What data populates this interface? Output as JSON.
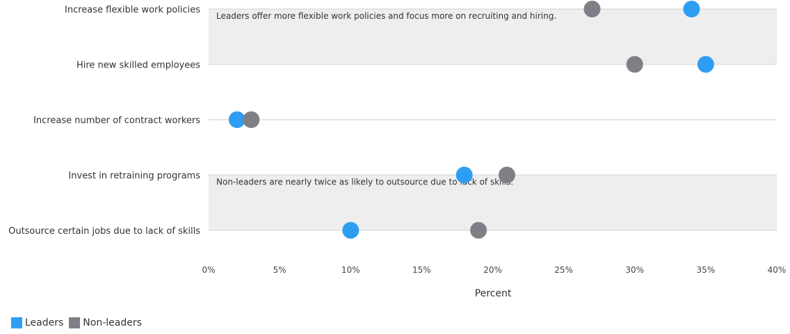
{
  "chart_data": {
    "type": "scatter",
    "categories": [
      "Increase flexible work policies",
      "Hire new skilled employees",
      "Increase number of contract workers",
      "Invest in retraining programs",
      "Outsource certain jobs due to lack of skills"
    ],
    "series": [
      {
        "name": "Leaders",
        "color": "#2e9ef2",
        "values": [
          34,
          35,
          2,
          18,
          10
        ]
      },
      {
        "name": "Non-leaders",
        "color": "#7f7f86",
        "values": [
          27,
          30,
          3,
          21,
          19
        ]
      }
    ],
    "xlabel": "Percent",
    "xlim": [
      0,
      40
    ],
    "xticks": [
      0,
      5,
      10,
      15,
      20,
      25,
      30,
      35,
      40
    ],
    "xtick_labels": [
      "0%",
      "5%",
      "10%",
      "15%",
      "20%",
      "25%",
      "30%",
      "35%",
      "40%"
    ],
    "legend_position": "bottom-left",
    "annotations": [
      {
        "text": "Leaders offer more flexible work policies and focus more on recruiting and hiring.",
        "band_from": "Increase flexible work policies",
        "band_to": "Hire new skilled employees"
      },
      {
        "text": "Non-leaders are nearly twice as likely to outsource due to lack of skills.",
        "band_from": "Invest in retraining programs",
        "band_to": "Outsource certain jobs due to lack of skills"
      }
    ],
    "band_color": "#eeeeee"
  },
  "legend": {
    "leaders_label": "Leaders",
    "leaders_color": "#2e9ef2",
    "nonleaders_label": "Non-leaders",
    "nonleaders_color": "#7f7f86"
  }
}
